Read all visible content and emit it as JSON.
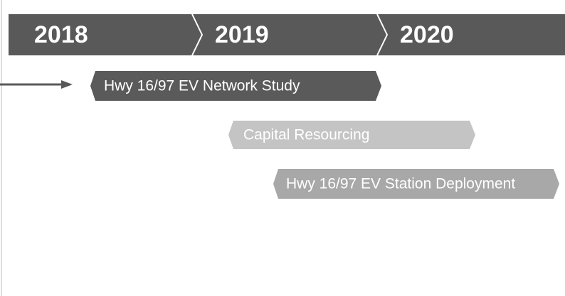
{
  "header": {
    "years": [
      "2018",
      "2019",
      "2020"
    ]
  },
  "tasks": [
    {
      "label": "Hwy 16/97 EV Network Study"
    },
    {
      "label": "Capital Resourcing"
    },
    {
      "label": "Hwy 16/97 EV Station Deployment"
    }
  ]
}
